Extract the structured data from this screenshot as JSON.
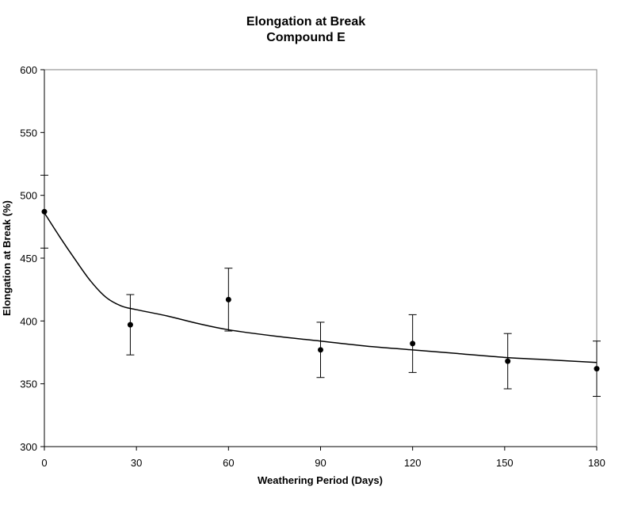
{
  "chart_data": {
    "type": "scatter",
    "title": [
      "Elongation at Break",
      "Compound E"
    ],
    "xlabel": "Weathering Period (Days)",
    "ylabel": "Elongation at Break (%)",
    "xlim": [
      0,
      180
    ],
    "ylim": [
      300,
      600
    ],
    "xticks": [
      0,
      30,
      60,
      90,
      120,
      150,
      180
    ],
    "yticks": [
      300,
      350,
      400,
      450,
      500,
      550,
      600
    ],
    "grid": false,
    "legend": "none",
    "series": [
      {
        "x": [
          0,
          28,
          60,
          90,
          120,
          151,
          180
        ],
        "y": [
          487,
          397,
          417,
          377,
          382,
          368,
          362
        ],
        "error_low": [
          458,
          373,
          392,
          355,
          359,
          346,
          340
        ],
        "error_high": [
          516,
          421,
          442,
          399,
          405,
          390,
          384
        ],
        "color": "#000000"
      }
    ],
    "trend_line": {
      "x": [
        0,
        5,
        10,
        15,
        20,
        25,
        30,
        40,
        50,
        60,
        75,
        90,
        105,
        120,
        135,
        150,
        165,
        180
      ],
      "y": [
        486,
        467,
        449,
        432,
        419,
        412,
        409,
        404,
        398,
        393,
        388,
        384,
        380,
        377,
        374,
        371,
        369,
        367
      ],
      "color": "#000000"
    }
  }
}
